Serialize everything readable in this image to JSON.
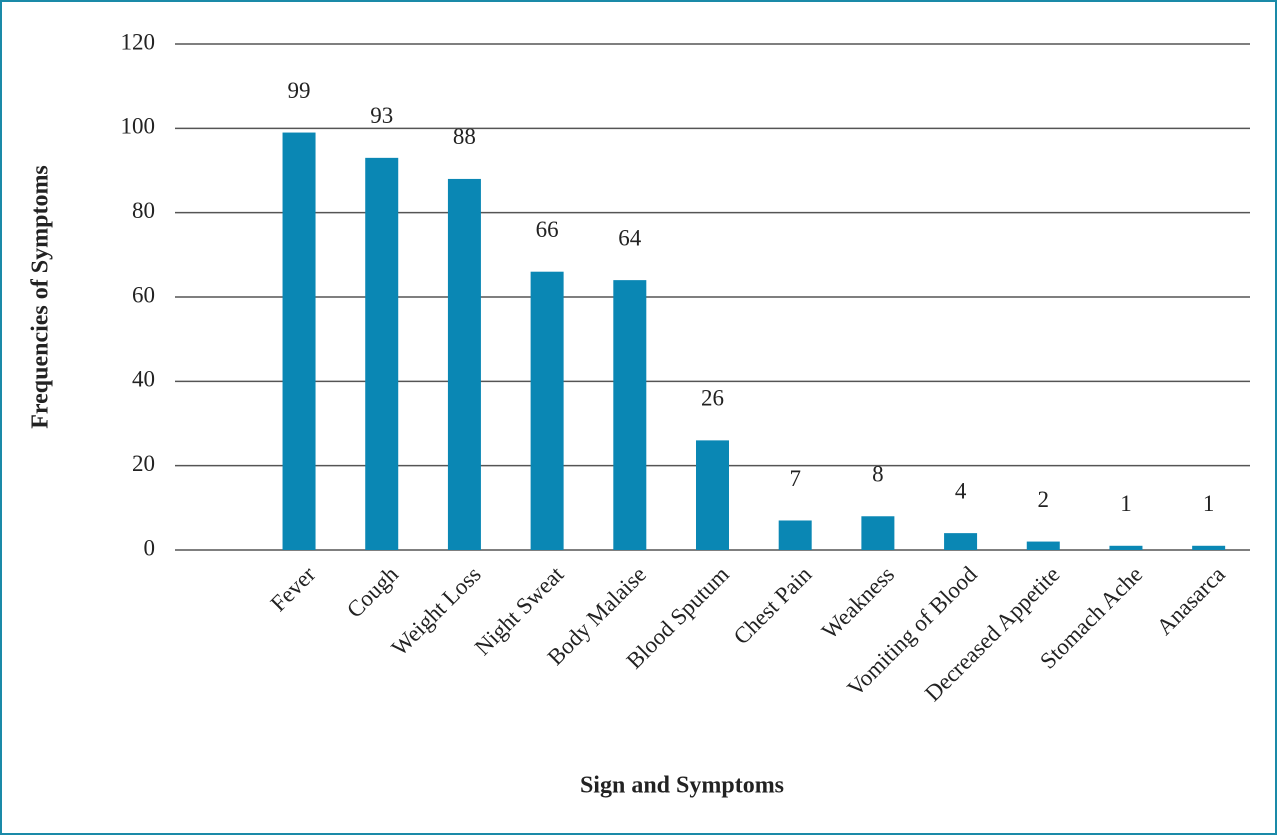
{
  "chart_data": {
    "type": "bar",
    "x_label": "Sign and Symptoms",
    "y_label": "Frequencies of Symptoms",
    "categories": [
      null,
      "Fever",
      "Cough",
      "Weight Loss",
      "Night Sweat",
      "Body Malaise",
      "Blood Sputum",
      "Chest Pain",
      "Weakness",
      "Vomiting of Blood",
      "Decreased Appetite",
      "Stomach Ache",
      "Anasarca"
    ],
    "values": [
      null,
      99,
      93,
      88,
      66,
      64,
      26,
      7,
      8,
      4,
      2,
      1,
      1
    ],
    "color": "#0a87b4",
    "ylim": [
      0,
      120
    ],
    "yticks": [
      0,
      20,
      40,
      60,
      80,
      100,
      120
    ],
    "grid": true
  }
}
